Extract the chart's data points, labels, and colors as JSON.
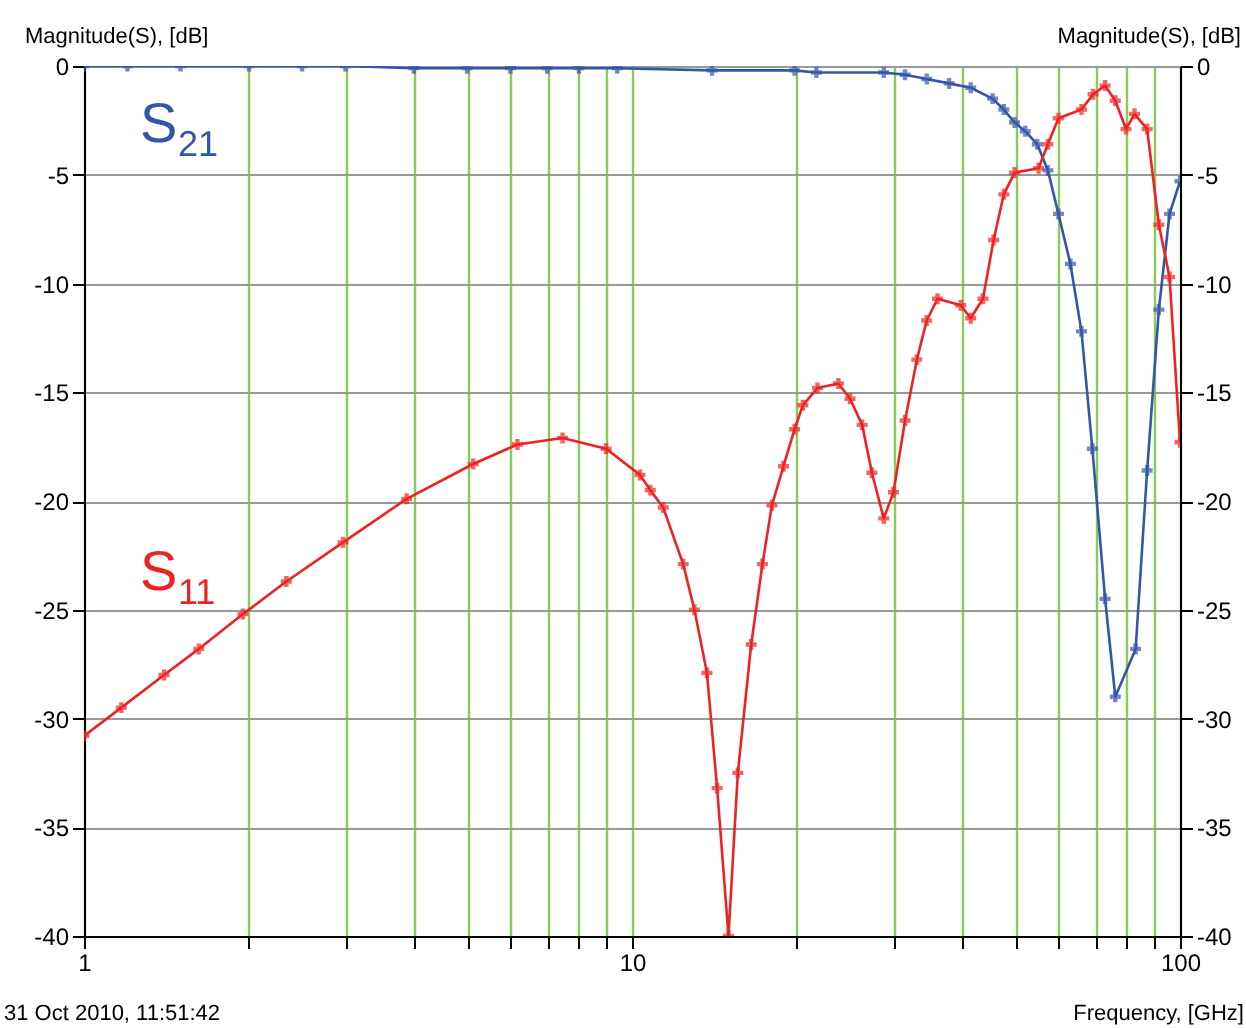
{
  "chart_data": {
    "type": "line",
    "xlabel": "Frequency, [GHz]",
    "ylabel": "Magnitude(S), [dB]",
    "y2label": "Magnitude(S), [dB]",
    "annotations": [
      "31 Oct 2010, 11:51:42"
    ],
    "log": "x",
    "grid": true,
    "marker": "cross",
    "line_style": "solid",
    "legend": false,
    "xlim": [
      1,
      100
    ],
    "ylim": [
      -40,
      0
    ],
    "y2lim": [
      -40,
      0
    ],
    "xticks": [
      1,
      {
        "value": 2,
        "label": null
      },
      {
        "value": 3,
        "label": null
      },
      {
        "value": 4,
        "label": null
      },
      {
        "value": 5,
        "label": null
      },
      {
        "value": 6,
        "label": null
      },
      {
        "value": 7,
        "label": null
      },
      {
        "value": 8,
        "label": null
      },
      {
        "value": 9,
        "label": null
      },
      10,
      {
        "value": 20,
        "label": null
      },
      {
        "value": 30,
        "label": null
      },
      {
        "value": 40,
        "label": null
      },
      {
        "value": 50,
        "label": null
      },
      {
        "value": 60,
        "label": null
      },
      {
        "value": 70,
        "label": null
      },
      {
        "value": 80,
        "label": null
      },
      {
        "value": 90,
        "label": null
      },
      100
    ],
    "yticks": [
      0,
      -5,
      -10,
      -15,
      -20,
      -25,
      -30,
      -35,
      -40
    ],
    "y2ticks": [
      0,
      -5,
      -10,
      -15,
      -20,
      -25,
      -30,
      -35,
      -40
    ],
    "series": [
      {
        "name": "S$_{21}$",
        "color": "#3355aa",
        "x": [
          1,
          1.2,
          1.5,
          2,
          2.5,
          3,
          4,
          5,
          6,
          7,
          8,
          9.4,
          14,
          19.8,
          21.7,
          28.8,
          31.5,
          34.5,
          37.9,
          41.5,
          45.5,
          47.7,
          49.9,
          52.2,
          54.9,
          57.4,
          60,
          63.1,
          66.1,
          69.2,
          73,
          76.2,
          83,
          87.1,
          91.5,
          95.7,
          100
        ],
        "values": [
          0,
          0,
          0,
          0,
          0,
          0,
          -0.1,
          -0.1,
          -0.1,
          -0.1,
          -0.1,
          -0.1,
          -0.2,
          -0.2,
          -0.3,
          -0.3,
          -0.4,
          -0.6,
          -0.8,
          -1.0,
          -1.5,
          -2.0,
          -2.6,
          -3.0,
          -3.6,
          -4.8,
          -6.8,
          -9.1,
          -12.2,
          -17.6,
          -24.5,
          -29.0,
          -26.8,
          -18.6,
          -11.2,
          -6.8,
          -5.3
        ]
      },
      {
        "name": "S$_{11}$",
        "color": "#ee2222",
        "x": [
          1,
          1.17,
          1.4,
          1.62,
          1.95,
          2.34,
          2.97,
          3.88,
          5.13,
          6.18,
          7.47,
          8.97,
          10.34,
          10.8,
          11.4,
          12.4,
          13.0,
          13.7,
          14.3,
          15.0,
          15.6,
          16.5,
          17.3,
          18.0,
          18.9,
          19.8,
          20.5,
          21.8,
          23.8,
          25.0,
          26.3,
          27.4,
          28.8,
          30.0,
          31.5,
          33.1,
          34.5,
          36.1,
          39.8,
          41.5,
          43.7,
          45.7,
          47.7,
          49.9,
          55.2,
          57.4,
          60.0,
          66.1,
          69.4,
          73.0,
          76.2,
          79.7,
          82.6,
          87.1,
          91.5,
          95.7,
          100
        ],
        "values": [
          -30.8,
          -29.5,
          -28.0,
          -26.8,
          -25.2,
          -23.7,
          -21.9,
          -19.9,
          -18.3,
          -17.4,
          -17.1,
          -17.6,
          -18.8,
          -19.5,
          -20.3,
          -22.9,
          -25.0,
          -27.9,
          -33.2,
          -40,
          -32.5,
          -26.6,
          -22.9,
          -20.2,
          -18.4,
          -16.7,
          -15.6,
          -14.8,
          -14.6,
          -15.3,
          -16.5,
          -18.7,
          -20.8,
          -19.6,
          -16.3,
          -13.5,
          -11.7,
          -10.7,
          -11.0,
          -11.6,
          -10.7,
          -8.0,
          -5.9,
          -4.9,
          -4.7,
          -3.6,
          -2.4,
          -2.0,
          -1.3,
          -0.9,
          -1.6,
          -2.9,
          -2.2,
          -2.9,
          -7.3,
          -9.7,
          -17.3
        ]
      }
    ]
  }
}
